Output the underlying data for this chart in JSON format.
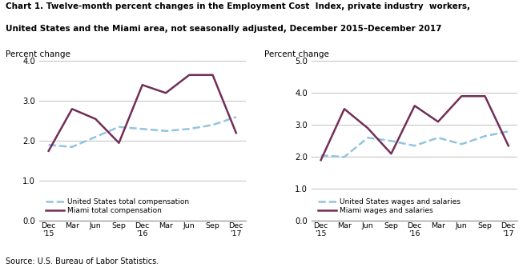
{
  "title_line1": "Chart 1. Twelve-month percent changes in the Employment Cost  Index, private industry  workers,",
  "title_line2": "United States and the Miami area, not seasonally adjusted, December 2015–December 2017",
  "source": "Source: U.S. Bureau of Labor Statistics.",
  "x_labels": [
    "Dec\n'15",
    "Mar",
    "Jun",
    "Sep",
    "Dec\n'16",
    "Mar",
    "Jun",
    "Sep",
    "Dec\n'17"
  ],
  "chart1": {
    "ylabel": "Percent change",
    "ylim": [
      0.0,
      4.0
    ],
    "yticks": [
      0.0,
      1.0,
      2.0,
      3.0,
      4.0
    ],
    "us_data": [
      1.9,
      1.85,
      2.1,
      2.35,
      2.3,
      2.25,
      2.3,
      2.4,
      2.6
    ],
    "miami_data": [
      1.75,
      2.8,
      2.55,
      1.95,
      3.4,
      3.2,
      3.65,
      3.65,
      2.2
    ],
    "legend_us": "United States total compensation",
    "legend_miami": "Miami total compensation"
  },
  "chart2": {
    "ylabel": "Percent change",
    "ylim": [
      0.0,
      5.0
    ],
    "yticks": [
      0.0,
      1.0,
      2.0,
      3.0,
      4.0,
      5.0
    ],
    "us_data": [
      2.05,
      2.0,
      2.6,
      2.5,
      2.35,
      2.6,
      2.4,
      2.65,
      2.8
    ],
    "miami_data": [
      1.9,
      3.5,
      2.9,
      2.1,
      3.6,
      3.1,
      3.9,
      3.9,
      2.35
    ],
    "legend_us": "United States wages and salaries",
    "legend_miami": "Miami wages and salaries"
  },
  "us_color": "#93c4e0",
  "miami_color": "#722f57",
  "us_linestyle": "--",
  "miami_linestyle": "-",
  "linewidth": 1.8
}
